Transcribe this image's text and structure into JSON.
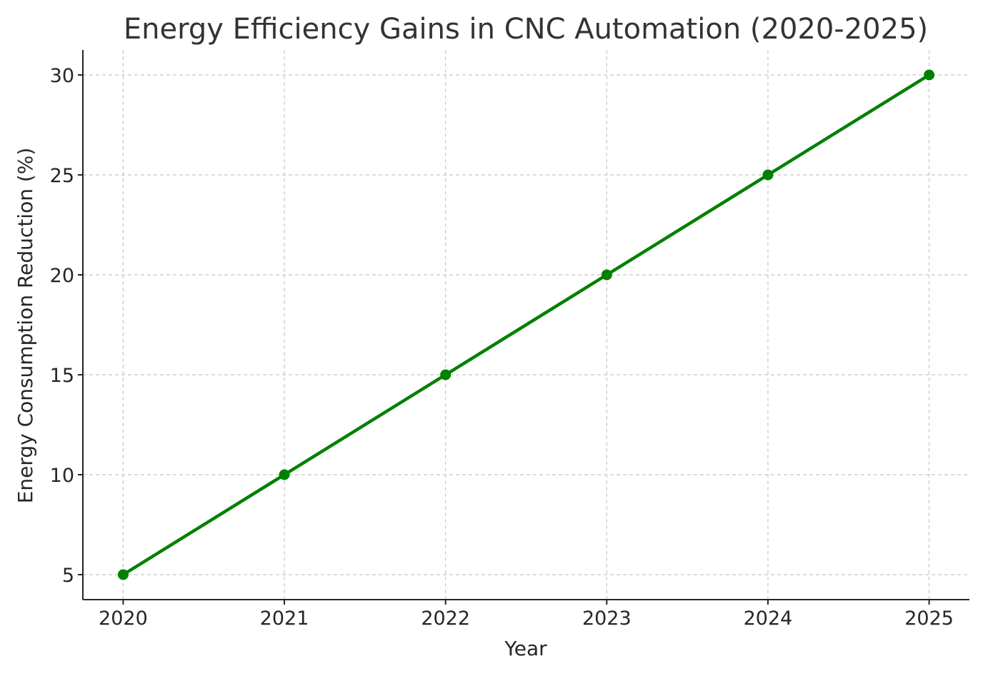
{
  "chart_data": {
    "type": "line",
    "title": "Energy Efficiency Gains in CNC Automation (2020-2025)",
    "xlabel": "Year",
    "ylabel": "Energy Consumption Reduction (%)",
    "x": [
      2020,
      2021,
      2022,
      2023,
      2024,
      2025
    ],
    "x_tick_labels": [
      "2020",
      "2021",
      "2022",
      "2023",
      "2024",
      "2025"
    ],
    "y_ticks": [
      5,
      10,
      15,
      20,
      25,
      30
    ],
    "y_tick_labels": [
      "5",
      "10",
      "15",
      "20",
      "25",
      "30"
    ],
    "xlim": [
      2019.75,
      2025.25
    ],
    "ylim": [
      3.75,
      31.25
    ],
    "grid": true,
    "legend": false,
    "series": [
      {
        "values": [
          5,
          10,
          15,
          20,
          25,
          30
        ],
        "color": "#008000",
        "marker": "circle"
      }
    ]
  }
}
